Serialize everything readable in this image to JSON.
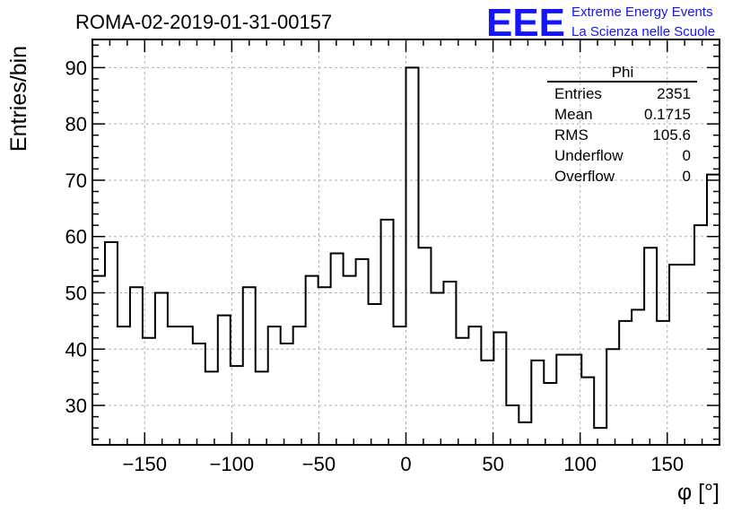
{
  "title": "ROMA-02-2019-01-31-00157",
  "logo": {
    "mark": "EEE",
    "line1": "Extreme Energy Events",
    "line2": "La Scienza nelle Scuole",
    "color": "#1414ff"
  },
  "stats": {
    "name": "Phi",
    "rows": [
      {
        "label": "Entries",
        "value": "2351"
      },
      {
        "label": "Mean",
        "value": "0.1715"
      },
      {
        "label": "RMS",
        "value": "105.6"
      },
      {
        "label": "Underflow",
        "value": "0"
      },
      {
        "label": "Overflow",
        "value": "0"
      }
    ]
  },
  "chart_data": {
    "type": "histogram",
    "title": "ROMA-02-2019-01-31-00157",
    "xlabel": "φ [°]",
    "ylabel": "Entries/bin",
    "xlim": [
      -180,
      180
    ],
    "ylim": [
      23,
      95
    ],
    "grid": true,
    "bin_width": 7.2,
    "bin_edges_start": -180,
    "values": [
      53,
      59,
      44,
      51,
      42,
      50,
      44,
      44,
      41,
      36,
      46,
      37,
      51,
      36,
      44,
      41,
      44,
      53,
      51,
      57,
      53,
      56,
      48,
      63,
      44,
      90,
      58,
      50,
      52,
      42,
      44,
      38,
      43,
      30,
      27,
      38,
      34,
      39,
      39,
      35,
      26,
      40,
      45,
      47,
      58,
      45,
      55,
      55,
      62,
      71
    ],
    "xticks": [
      -150,
      -100,
      -50,
      0,
      50,
      100,
      150
    ],
    "xtick_labels": [
      "−150",
      "−100",
      "−50",
      "0",
      "50",
      "100",
      "150"
    ],
    "yticks": [
      30,
      40,
      50,
      60,
      70,
      80,
      90
    ],
    "ytick_labels": [
      "30",
      "40",
      "50",
      "60",
      "70",
      "80",
      "90"
    ]
  }
}
